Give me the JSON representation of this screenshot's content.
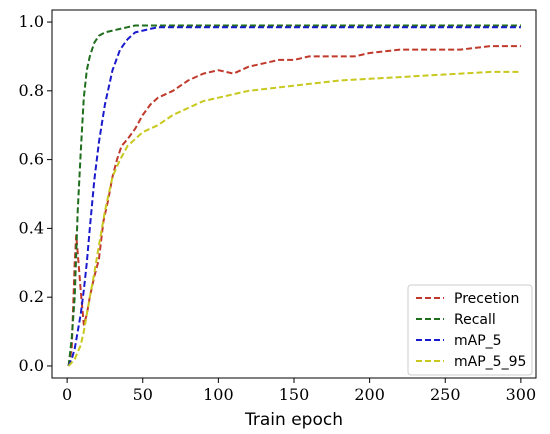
{
  "chart_data": {
    "type": "line",
    "title": "",
    "xlabel": "Train epoch",
    "ylabel": "",
    "xlim": [
      -10,
      310
    ],
    "ylim": [
      -0.035,
      1.035
    ],
    "xticks": [
      0,
      50,
      100,
      150,
      200,
      250,
      300
    ],
    "yticks": [
      "0.0",
      "0.2",
      "0.4",
      "0.6",
      "0.8",
      "1.0"
    ],
    "grid": false,
    "legend_position": "lower-right",
    "series": [
      {
        "name": "Precetion",
        "color": "#c0392b",
        "x": [
          1,
          3,
          5,
          6,
          7,
          9,
          11,
          13,
          15,
          18,
          21,
          24,
          27,
          30,
          33,
          36,
          40,
          45,
          50,
          55,
          60,
          70,
          80,
          90,
          100,
          110,
          120,
          130,
          140,
          150,
          160,
          170,
          180,
          190,
          200,
          220,
          240,
          260,
          280,
          300
        ],
        "values": [
          0.0,
          0.05,
          0.3,
          0.38,
          0.33,
          0.22,
          0.12,
          0.15,
          0.2,
          0.26,
          0.31,
          0.42,
          0.48,
          0.55,
          0.6,
          0.64,
          0.66,
          0.69,
          0.73,
          0.76,
          0.78,
          0.8,
          0.83,
          0.85,
          0.86,
          0.85,
          0.87,
          0.88,
          0.89,
          0.89,
          0.9,
          0.9,
          0.9,
          0.9,
          0.91,
          0.92,
          0.92,
          0.92,
          0.93,
          0.93
        ]
      },
      {
        "name": "Recall",
        "color": "#1e6e1e",
        "x": [
          1,
          3,
          5,
          7,
          9,
          11,
          13,
          15,
          18,
          21,
          25,
          30,
          35,
          40,
          45,
          50,
          60,
          80,
          100,
          150,
          200,
          250,
          300
        ],
        "values": [
          0.0,
          0.08,
          0.2,
          0.45,
          0.62,
          0.78,
          0.86,
          0.9,
          0.94,
          0.96,
          0.97,
          0.975,
          0.98,
          0.985,
          0.99,
          0.99,
          0.99,
          0.99,
          0.99,
          0.99,
          0.99,
          0.99,
          0.99
        ]
      },
      {
        "name": "mAP_5",
        "color": "#1a1acc",
        "x": [
          1,
          3,
          5,
          7,
          9,
          11,
          13,
          15,
          18,
          21,
          25,
          30,
          35,
          40,
          45,
          50,
          55,
          60,
          70,
          80,
          100,
          150,
          200,
          250,
          300
        ],
        "values": [
          0.0,
          0.02,
          0.05,
          0.1,
          0.15,
          0.22,
          0.3,
          0.4,
          0.54,
          0.65,
          0.76,
          0.86,
          0.92,
          0.95,
          0.97,
          0.975,
          0.98,
          0.985,
          0.985,
          0.985,
          0.985,
          0.985,
          0.985,
          0.985,
          0.985
        ]
      },
      {
        "name": "mAP_5_95",
        "color": "#c8c81e",
        "x": [
          1,
          3,
          5,
          7,
          9,
          11,
          13,
          15,
          18,
          21,
          25,
          30,
          35,
          40,
          45,
          50,
          60,
          70,
          80,
          90,
          100,
          120,
          140,
          160,
          180,
          200,
          220,
          240,
          260,
          280,
          300
        ],
        "values": [
          0.0,
          0.01,
          0.02,
          0.04,
          0.06,
          0.1,
          0.15,
          0.2,
          0.27,
          0.35,
          0.45,
          0.55,
          0.6,
          0.64,
          0.66,
          0.68,
          0.7,
          0.73,
          0.75,
          0.77,
          0.78,
          0.8,
          0.81,
          0.82,
          0.83,
          0.835,
          0.84,
          0.845,
          0.85,
          0.855,
          0.855
        ]
      }
    ]
  }
}
